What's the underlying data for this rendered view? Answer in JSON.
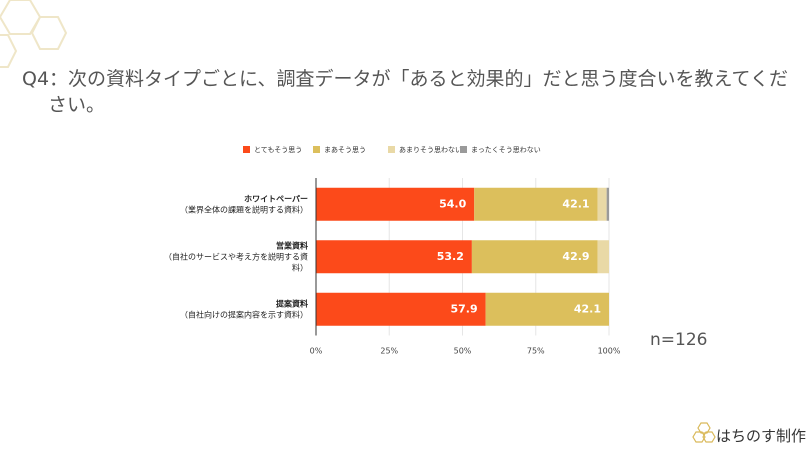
{
  "chart_data": {
    "type": "stacked-bar-horizontal",
    "title": "Q4：次の資料タイプごとに、調査データが「あると効果的」だと思う度合いを教えてください。",
    "categories": [
      [
        "ホワイトペーパー",
        "（業界全体の課題を説明する資料）"
      ],
      [
        "営業資料",
        "（自社のサービスや考え方を説明する資",
        "料）"
      ],
      [
        "提案資料",
        "（自社向けの提案内容を示す資料）"
      ]
    ],
    "series": [
      {
        "name": "とてもそう思う",
        "color": "#fc4a1a",
        "values": [
          54.0,
          53.2,
          57.9
        ],
        "value_labels": [
          "54.0",
          "53.2",
          "57.9"
        ]
      },
      {
        "name": "まあそう思う",
        "color": "#dcbf5c",
        "values": [
          42.1,
          42.9,
          42.1
        ],
        "value_labels": [
          "42.1",
          "42.9",
          "42.1"
        ]
      },
      {
        "name": "あまりそう思わない",
        "color": "#e9d9a6",
        "values": [
          3.1,
          3.9,
          0
        ]
      },
      {
        "name": "まったくそう思わない",
        "color": "#9a9a9a",
        "values": [
          0.8,
          0,
          0
        ]
      }
    ],
    "xlim": [
      0,
      100
    ],
    "xticks": [
      {
        "value": 0,
        "label": "0%"
      },
      {
        "value": 25,
        "label": "25%"
      },
      {
        "value": 50,
        "label": "50%"
      },
      {
        "value": 75,
        "label": "75%"
      },
      {
        "value": 100,
        "label": "100%"
      }
    ],
    "annotation": "n=126"
  },
  "footer": {
    "brand": "はちのす制作"
  }
}
